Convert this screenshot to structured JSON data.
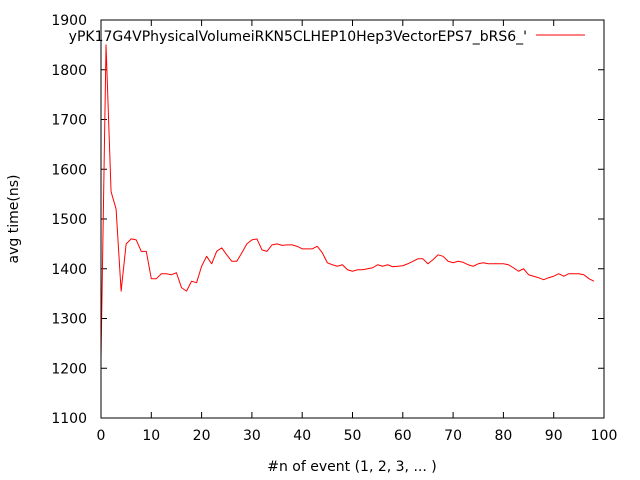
{
  "chart_data": {
    "type": "line",
    "title": "",
    "xlabel": "#n of event (1, 2, 3, ... )",
    "ylabel": "avg time(ns)",
    "xlim": [
      0,
      100
    ],
    "ylim": [
      1100,
      1900
    ],
    "xticks": [
      0,
      10,
      20,
      30,
      40,
      50,
      60,
      70,
      80,
      90,
      100
    ],
    "yticks": [
      1100,
      1200,
      1300,
      1400,
      1500,
      1600,
      1700,
      1800,
      1900
    ],
    "grid": false,
    "legend_position": "top-right",
    "series": [
      {
        "name": "yPK17G4VPhysicalVolumeiRKN5CLHEP10Hep3VectorEPS7_bRS6_'",
        "color": "#ff0000",
        "x": [
          0,
          1,
          2,
          3,
          4,
          5,
          6,
          7,
          8,
          9,
          10,
          11,
          12,
          13,
          14,
          15,
          16,
          17,
          18,
          19,
          20,
          21,
          22,
          23,
          24,
          25,
          26,
          27,
          28,
          29,
          30,
          31,
          32,
          33,
          34,
          35,
          36,
          37,
          38,
          39,
          40,
          41,
          42,
          43,
          44,
          45,
          46,
          47,
          48,
          49,
          50,
          51,
          52,
          53,
          54,
          55,
          56,
          57,
          58,
          59,
          60,
          61,
          62,
          63,
          64,
          65,
          66,
          67,
          68,
          69,
          70,
          71,
          72,
          73,
          74,
          75,
          76,
          77,
          78,
          79,
          80,
          81,
          82,
          83,
          84,
          85,
          86,
          87,
          88,
          89,
          90,
          91,
          92,
          93,
          94,
          95,
          96,
          97,
          98
        ],
        "values": [
          1220,
          1850,
          1555,
          1520,
          1355,
          1450,
          1460,
          1458,
          1435,
          1435,
          1380,
          1380,
          1390,
          1390,
          1388,
          1392,
          1362,
          1355,
          1375,
          1372,
          1405,
          1425,
          1410,
          1435,
          1442,
          1428,
          1415,
          1415,
          1432,
          1450,
          1458,
          1460,
          1438,
          1435,
          1448,
          1450,
          1447,
          1448,
          1448,
          1445,
          1440,
          1440,
          1440,
          1445,
          1432,
          1412,
          1408,
          1405,
          1408,
          1398,
          1395,
          1398,
          1398,
          1400,
          1402,
          1408,
          1405,
          1408,
          1404,
          1405,
          1406,
          1410,
          1415,
          1420,
          1420,
          1410,
          1418,
          1428,
          1425,
          1415,
          1412,
          1415,
          1413,
          1408,
          1405,
          1410,
          1412,
          1410,
          1410,
          1410,
          1410,
          1408,
          1402,
          1395,
          1400,
          1388,
          1385,
          1382,
          1378,
          1382,
          1385,
          1390,
          1385,
          1390,
          1390,
          1390,
          1388,
          1380,
          1375
        ]
      }
    ]
  }
}
